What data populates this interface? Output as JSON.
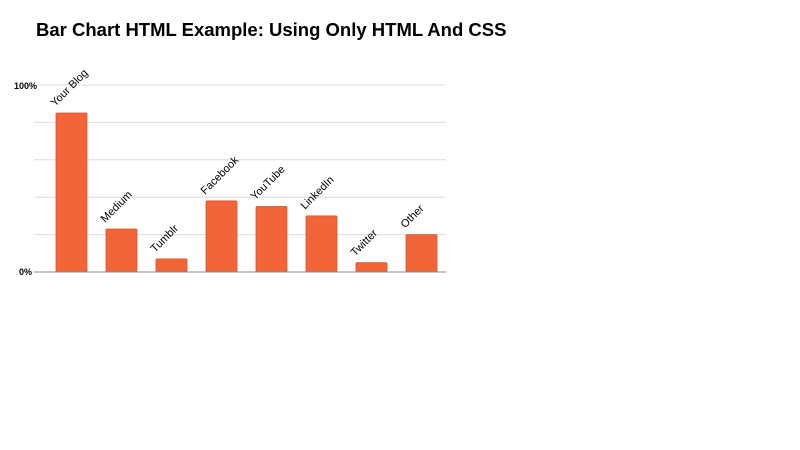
{
  "chart_data": {
    "type": "bar",
    "title": "Bar Chart HTML Example: Using Only HTML And CSS",
    "xlabel": "",
    "ylabel": "",
    "categories": [
      "Your Blog",
      "Medium",
      "Tumblr",
      "Facebook",
      "YouTube",
      "LinkedIn",
      "Twitter",
      "Other"
    ],
    "values": [
      85,
      23,
      7,
      38,
      35,
      30,
      5,
      20
    ],
    "ylim": [
      0,
      100
    ],
    "y_tick_labels": [
      "0%",
      "100%"
    ],
    "y_gridline_values": [
      0,
      20,
      40,
      60,
      80,
      100
    ],
    "grid": true,
    "legend": "none",
    "bar_color": "#f26539",
    "bar_border_color": "#d9512a",
    "grid_color": "#dddddd",
    "axis_color": "#888888"
  }
}
